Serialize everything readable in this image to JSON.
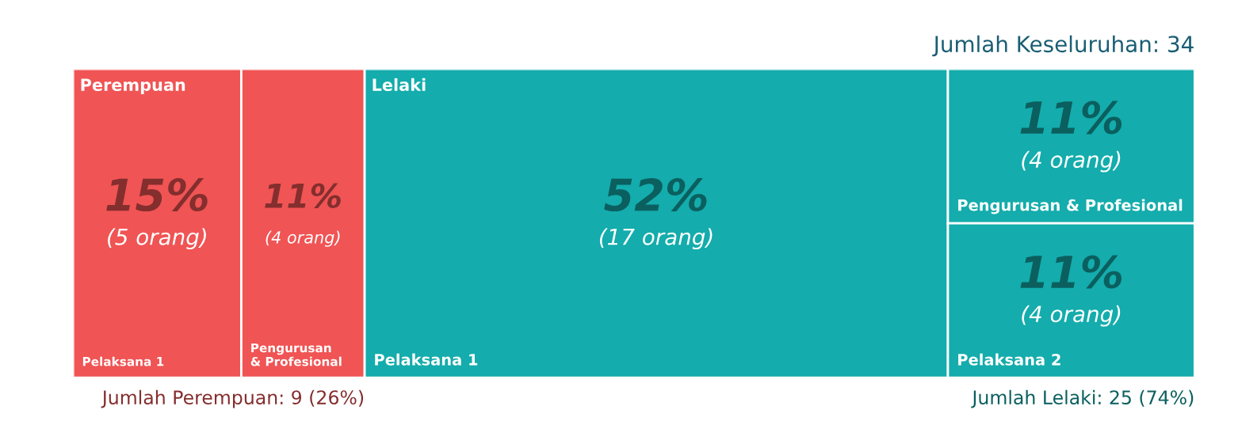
{
  "chart_data": {
    "type": "other",
    "title": "Jumlah Keseluruhan: 34",
    "categories": [
      "Pelaksana 1",
      "Pengurusan & Profesional",
      "Pelaksana 2"
    ],
    "series": [
      {
        "name": "Perempuan",
        "color": "#f05454",
        "values": [
          15,
          11,
          null
        ],
        "value_labels": [
          "15%\n(5 orang)",
          "11%\n(4 orang)",
          null
        ]
      },
      {
        "name": "Lelaki",
        "color": "#14acac",
        "values": [
          52,
          11,
          11
        ],
        "value_labels": [
          "52%\n(17 orang)",
          "11%\n(4 orang)",
          "11%\n(4 orang)"
        ]
      }
    ],
    "totals": [
      "Jumlah Perempuan: 9 (26%)",
      "Jumlah Lelaki: 25 (74%)"
    ]
  }
}
